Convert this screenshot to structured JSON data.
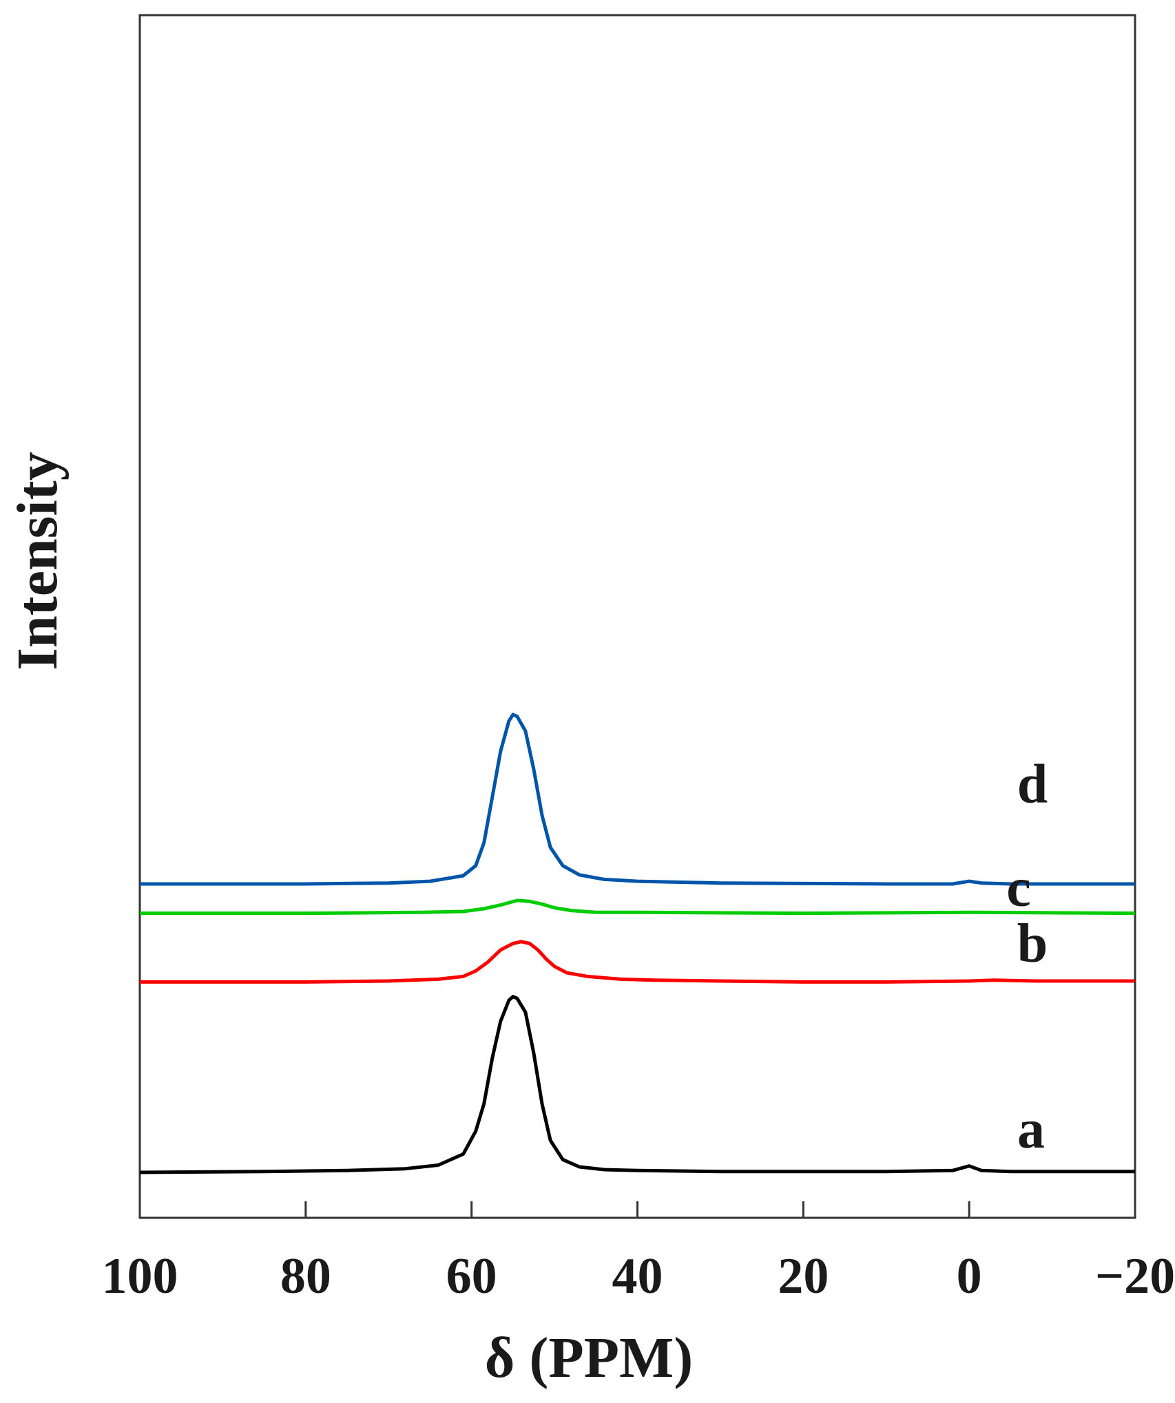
{
  "chart_data": {
    "type": "line",
    "xlabel": "δ (PPM)",
    "ylabel": "Intensity",
    "xlim": [
      100,
      -20
    ],
    "x_reversed": true,
    "x_ticks": [
      100,
      80,
      60,
      40,
      20,
      0,
      -20
    ],
    "x_tick_labels": [
      "100",
      "80",
      "60",
      "40",
      "20",
      "0",
      "−20"
    ],
    "y_ticks_shown": false,
    "grid": false,
    "legend": "none (curves labeled inline)",
    "series": [
      {
        "name": "a",
        "color": "#000000",
        "baseline": 0.0,
        "points": [
          [
            100,
            0.0
          ],
          [
            85,
            0.01
          ],
          [
            75,
            0.02
          ],
          [
            68,
            0.04
          ],
          [
            64,
            0.08
          ],
          [
            61,
            0.2
          ],
          [
            59.5,
            0.45
          ],
          [
            58.5,
            0.75
          ],
          [
            57.5,
            1.25
          ],
          [
            56.5,
            1.65
          ],
          [
            55.5,
            1.88
          ],
          [
            55,
            1.92
          ],
          [
            54.5,
            1.9
          ],
          [
            53.5,
            1.75
          ],
          [
            52.5,
            1.3
          ],
          [
            51.5,
            0.75
          ],
          [
            50.5,
            0.35
          ],
          [
            49,
            0.14
          ],
          [
            47,
            0.06
          ],
          [
            44,
            0.03
          ],
          [
            40,
            0.02
          ],
          [
            30,
            0.01
          ],
          [
            10,
            0.01
          ],
          [
            2,
            0.02
          ],
          [
            0,
            0.07
          ],
          [
            -1.5,
            0.02
          ],
          [
            -5,
            0.01
          ],
          [
            -20,
            0.01
          ]
        ]
      },
      {
        "name": "b",
        "color": "#ff0000",
        "baseline": 2.08,
        "points": [
          [
            100,
            2.08
          ],
          [
            80,
            2.08
          ],
          [
            70,
            2.09
          ],
          [
            64,
            2.11
          ],
          [
            61,
            2.14
          ],
          [
            59.5,
            2.2
          ],
          [
            58,
            2.3
          ],
          [
            56.5,
            2.43
          ],
          [
            55,
            2.5
          ],
          [
            54,
            2.52
          ],
          [
            53,
            2.5
          ],
          [
            52,
            2.43
          ],
          [
            51,
            2.33
          ],
          [
            50,
            2.25
          ],
          [
            48.5,
            2.18
          ],
          [
            46,
            2.14
          ],
          [
            42,
            2.11
          ],
          [
            38,
            2.1
          ],
          [
            30,
            2.09
          ],
          [
            20,
            2.08
          ],
          [
            10,
            2.08
          ],
          [
            0,
            2.09
          ],
          [
            -3,
            2.1
          ],
          [
            -8,
            2.09
          ],
          [
            -20,
            2.09
          ]
        ]
      },
      {
        "name": "c",
        "color": "#00cc00",
        "baseline": 2.83,
        "points": [
          [
            100,
            2.83
          ],
          [
            80,
            2.83
          ],
          [
            66,
            2.84
          ],
          [
            61,
            2.85
          ],
          [
            58.5,
            2.88
          ],
          [
            56.5,
            2.92
          ],
          [
            54.5,
            2.97
          ],
          [
            53,
            2.96
          ],
          [
            51.5,
            2.93
          ],
          [
            50,
            2.89
          ],
          [
            48,
            2.86
          ],
          [
            45,
            2.84
          ],
          [
            40,
            2.84
          ],
          [
            20,
            2.83
          ],
          [
            0,
            2.84
          ],
          [
            -20,
            2.83
          ]
        ]
      },
      {
        "name": "d",
        "color": "#0055aa",
        "baseline": 3.15,
        "points": [
          [
            100,
            3.15
          ],
          [
            80,
            3.15
          ],
          [
            70,
            3.16
          ],
          [
            65,
            3.18
          ],
          [
            61,
            3.24
          ],
          [
            59.5,
            3.35
          ],
          [
            58.5,
            3.6
          ],
          [
            57.5,
            4.1
          ],
          [
            56.5,
            4.6
          ],
          [
            55.5,
            4.93
          ],
          [
            55,
            5.0
          ],
          [
            54.5,
            4.98
          ],
          [
            53.5,
            4.82
          ],
          [
            52.5,
            4.4
          ],
          [
            51.5,
            3.9
          ],
          [
            50.5,
            3.55
          ],
          [
            49,
            3.35
          ],
          [
            47,
            3.25
          ],
          [
            44,
            3.2
          ],
          [
            40,
            3.18
          ],
          [
            30,
            3.16
          ],
          [
            10,
            3.15
          ],
          [
            2,
            3.15
          ],
          [
            0,
            3.18
          ],
          [
            -1.5,
            3.16
          ],
          [
            -5,
            3.15
          ],
          [
            -20,
            3.15
          ]
        ]
      }
    ]
  }
}
